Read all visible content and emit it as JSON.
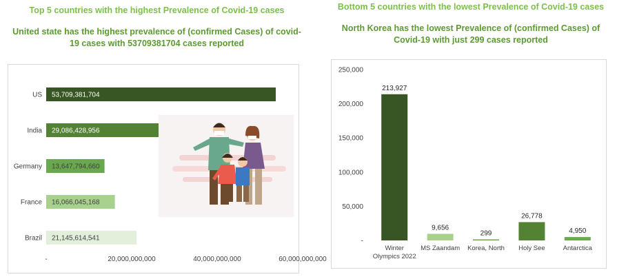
{
  "left": {
    "heading": "Top 5 countries with the highest Prevalence of Covid-19 cases",
    "subheading": "United state has the highest prevalence of (confirmed Cases) of covid-19 cases with 53709381704 cases reported"
  },
  "right": {
    "heading": "Bottom 5 countries with the lowest Prevalence of Covid-19 cases",
    "subheading": "North Korea has the lowest Prevalence of (confirmed Cases) of Covid-19 with just 299 cases reported"
  },
  "chart_data": [
    {
      "type": "bar",
      "orientation": "horizontal",
      "categories": [
        "US",
        "India",
        "Germany",
        "France",
        "Brazil"
      ],
      "values": [
        53709381704,
        29086428956,
        13647794660,
        16066045168,
        21145614541
      ],
      "data_labels": [
        "53,709,381,704",
        "29,086,428,956",
        "13,647,794,660",
        "16,066,045,168",
        "21,145,614,541"
      ],
      "bar_colors": [
        "#375623",
        "#548235",
        "#6aa84f",
        "#a9d18e",
        "#e2efda"
      ],
      "xticks": [
        "-",
        "20,000,000,000",
        "40,000,000,000",
        "60,000,000,000"
      ],
      "xlim": [
        0,
        60000000000
      ],
      "title": "",
      "xlabel": "",
      "ylabel": "",
      "image": "family-with-masks-illustration"
    },
    {
      "type": "bar",
      "orientation": "vertical",
      "categories": [
        "Winter Olympics 2022",
        "MS Zaandam",
        "Korea, North",
        "Holy See",
        "Antarctica"
      ],
      "values": [
        213927,
        9656,
        299,
        26778,
        4950
      ],
      "data_labels": [
        "213,927",
        "9,656",
        "299",
        "26,778",
        "4,950"
      ],
      "bar_colors": [
        "#375623",
        "#a9d18e",
        "#6aa84f",
        "#548235",
        "#6aa84f"
      ],
      "yticks": [
        "-",
        "50,000",
        "100,000",
        "150,000",
        "200,000",
        "250,000"
      ],
      "ylim": [
        0,
        250000
      ],
      "title": "",
      "xlabel": "",
      "ylabel": ""
    }
  ]
}
